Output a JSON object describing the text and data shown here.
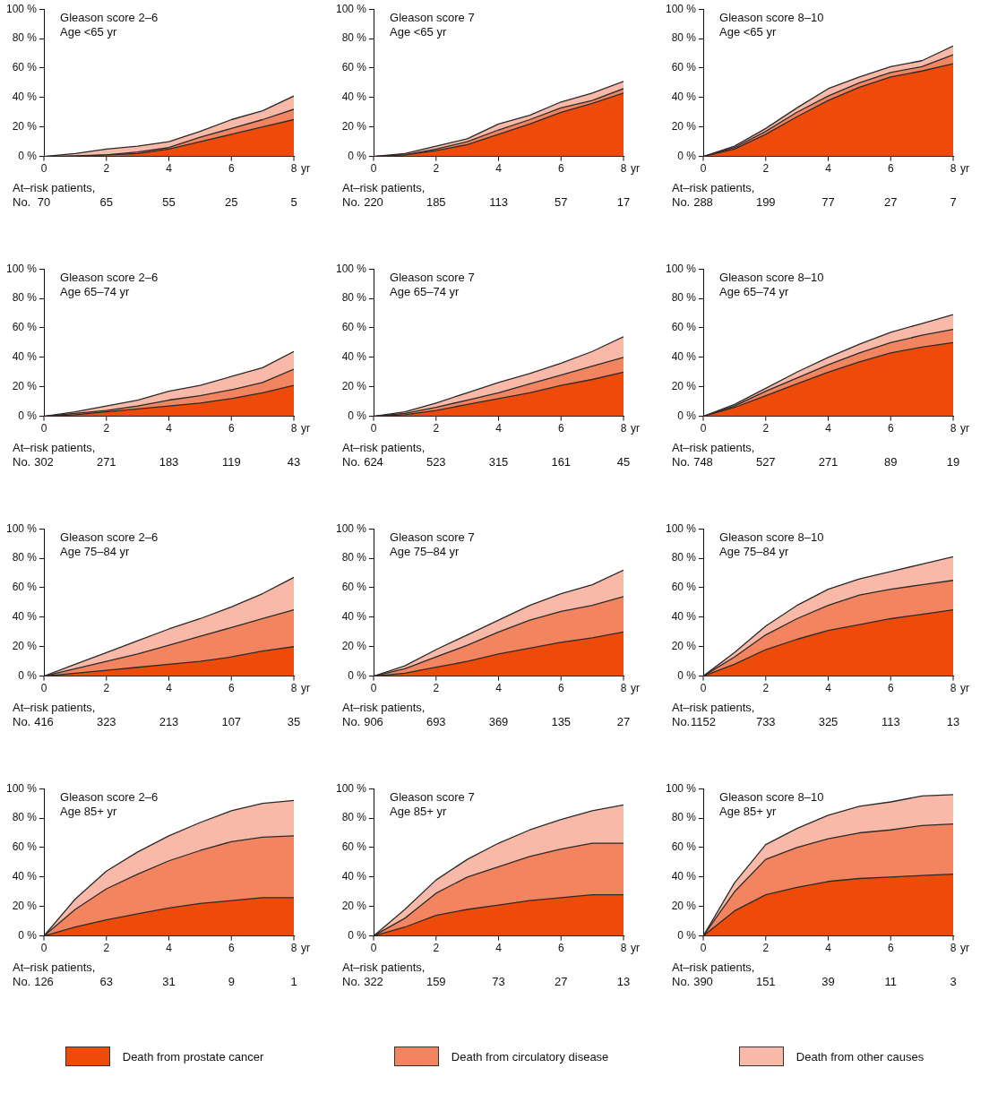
{
  "chart_data": [
    {
      "type": "area",
      "stacked": true,
      "title": "Gleason score 2–6",
      "subtitle": "Age <65 yr",
      "xlabel": "yr",
      "x": [
        0,
        1,
        2,
        3,
        4,
        5,
        6,
        7,
        8
      ],
      "xlim": [
        0,
        8
      ],
      "xticks": [
        0,
        2,
        4,
        6,
        8
      ],
      "ylim": [
        0,
        100
      ],
      "yticks": [
        {
          "value": 0,
          "label": "0 %"
        },
        {
          "value": 20,
          "label": "20 %"
        },
        {
          "value": 40,
          "label": "40 %"
        },
        {
          "value": 60,
          "label": "60 %"
        },
        {
          "value": 80,
          "label": "80 %"
        },
        {
          "value": 100,
          "label": "100 %"
        }
      ],
      "series": [
        {
          "color": "#ee4b0b",
          "values": [
            0,
            0,
            1,
            2,
            5,
            10,
            15,
            20,
            25
          ]
        },
        {
          "color": "#f2855f",
          "values": [
            0,
            0.5,
            0,
            1,
            1,
            3,
            4,
            5,
            7
          ]
        },
        {
          "color": "#f8b9a8",
          "values": [
            0,
            1.5,
            4,
            4,
            4,
            4,
            6,
            6,
            9
          ]
        }
      ],
      "annotations": [
        "At–risk patients,",
        "No.",
        "70",
        "65",
        "55",
        "25",
        "5"
      ]
    },
    {
      "type": "area",
      "stacked": true,
      "title": "Gleason score 7",
      "subtitle": "Age <65 yr",
      "xlabel": "yr",
      "x": [
        0,
        1,
        2,
        3,
        4,
        5,
        6,
        7,
        8
      ],
      "xlim": [
        0,
        8
      ],
      "xticks": [
        0,
        2,
        4,
        6,
        8
      ],
      "ylim": [
        0,
        100
      ],
      "yticks": [
        {
          "value": 0,
          "label": "0 %"
        },
        {
          "value": 20,
          "label": "20 %"
        },
        {
          "value": 40,
          "label": "40 %"
        },
        {
          "value": 60,
          "label": "60 %"
        },
        {
          "value": 80,
          "label": "80 %"
        },
        {
          "value": 100,
          "label": "100 %"
        }
      ],
      "series": [
        {
          "color": "#ee4b0b",
          "values": [
            0,
            1,
            4,
            8,
            15,
            22,
            30,
            36,
            43
          ]
        },
        {
          "color": "#f2855f",
          "values": [
            0,
            0,
            1,
            2,
            3,
            3,
            3,
            2,
            3
          ]
        },
        {
          "color": "#f8b9a8",
          "values": [
            0,
            1,
            2,
            2,
            4,
            3,
            4,
            5,
            5
          ]
        }
      ],
      "annotations": [
        "At–risk patients,",
        "No.",
        "220",
        "185",
        "113",
        "57",
        "17"
      ]
    },
    {
      "type": "area",
      "stacked": true,
      "title": "Gleason score 8–10",
      "subtitle": "Age <65 yr",
      "xlabel": "yr",
      "x": [
        0,
        1,
        2,
        3,
        4,
        5,
        6,
        7,
        8
      ],
      "xlim": [
        0,
        8
      ],
      "xticks": [
        0,
        2,
        4,
        6,
        8
      ],
      "ylim": [
        0,
        100
      ],
      "yticks": [
        {
          "value": 0,
          "label": "0 %"
        },
        {
          "value": 20,
          "label": "20 %"
        },
        {
          "value": 40,
          "label": "40 %"
        },
        {
          "value": 60,
          "label": "60 %"
        },
        {
          "value": 80,
          "label": "80 %"
        },
        {
          "value": 100,
          "label": "100 %"
        }
      ],
      "series": [
        {
          "color": "#ee4b0b",
          "values": [
            0,
            5,
            15,
            27,
            38,
            47,
            54,
            58,
            63
          ]
        },
        {
          "color": "#f2855f",
          "values": [
            0,
            1,
            2,
            3,
            3,
            3,
            3,
            3,
            6
          ]
        },
        {
          "color": "#f8b9a8",
          "values": [
            0,
            1,
            2,
            3,
            5,
            4,
            4,
            4,
            6
          ]
        }
      ],
      "annotations": [
        "At–risk patients,",
        "No.",
        "288",
        "199",
        "77",
        "27",
        "7"
      ]
    },
    {
      "type": "area",
      "stacked": true,
      "title": "Gleason score 2–6",
      "subtitle": "Age 65–74 yr",
      "xlabel": "yr",
      "x": [
        0,
        1,
        2,
        3,
        4,
        5,
        6,
        7,
        8
      ],
      "xlim": [
        0,
        8
      ],
      "xticks": [
        0,
        2,
        4,
        6,
        8
      ],
      "ylim": [
        0,
        100
      ],
      "yticks": [
        {
          "value": 0,
          "label": "0 %"
        },
        {
          "value": 20,
          "label": "20 %"
        },
        {
          "value": 40,
          "label": "40 %"
        },
        {
          "value": 60,
          "label": "60 %"
        },
        {
          "value": 80,
          "label": "80 %"
        },
        {
          "value": 100,
          "label": "100 %"
        }
      ],
      "series": [
        {
          "color": "#ee4b0b",
          "values": [
            0,
            1,
            3,
            5,
            7,
            9,
            12,
            16,
            21
          ]
        },
        {
          "color": "#f2855f",
          "values": [
            0,
            1,
            1,
            2,
            4,
            5,
            6,
            7,
            11
          ]
        },
        {
          "color": "#f8b9a8",
          "values": [
            0,
            1,
            3,
            4,
            6,
            7,
            9,
            10,
            12
          ]
        }
      ],
      "annotations": [
        "At–risk patients,",
        "No.",
        "302",
        "271",
        "183",
        "119",
        "43"
      ]
    },
    {
      "type": "area",
      "stacked": true,
      "title": "Gleason score 7",
      "subtitle": "Age 65–74 yr",
      "xlabel": "yr",
      "x": [
        0,
        1,
        2,
        3,
        4,
        5,
        6,
        7,
        8
      ],
      "xlim": [
        0,
        8
      ],
      "xticks": [
        0,
        2,
        4,
        6,
        8
      ],
      "ylim": [
        0,
        100
      ],
      "yticks": [
        {
          "value": 0,
          "label": "0 %"
        },
        {
          "value": 20,
          "label": "20 %"
        },
        {
          "value": 40,
          "label": "40 %"
        },
        {
          "value": 60,
          "label": "60 %"
        },
        {
          "value": 80,
          "label": "80 %"
        },
        {
          "value": 100,
          "label": "100 %"
        }
      ],
      "series": [
        {
          "color": "#ee4b0b",
          "values": [
            0,
            1,
            4,
            8,
            12,
            16,
            21,
            25,
            30
          ]
        },
        {
          "color": "#f2855f",
          "values": [
            0,
            1,
            2,
            3,
            4,
            6,
            7,
            9,
            10
          ]
        },
        {
          "color": "#f8b9a8",
          "values": [
            0,
            1,
            3,
            5,
            7,
            7,
            8,
            10,
            14
          ]
        }
      ],
      "annotations": [
        "At–risk patients,",
        "No.",
        "624",
        "523",
        "315",
        "161",
        "45"
      ]
    },
    {
      "type": "area",
      "stacked": true,
      "title": "Gleason score 8–10",
      "subtitle": "Age 65–74 yr",
      "xlabel": "yr",
      "x": [
        0,
        1,
        2,
        3,
        4,
        5,
        6,
        7,
        8
      ],
      "xlim": [
        0,
        8
      ],
      "xticks": [
        0,
        2,
        4,
        6,
        8
      ],
      "ylim": [
        0,
        100
      ],
      "yticks": [
        {
          "value": 0,
          "label": "0 %"
        },
        {
          "value": 20,
          "label": "20 %"
        },
        {
          "value": 40,
          "label": "40 %"
        },
        {
          "value": 60,
          "label": "60 %"
        },
        {
          "value": 80,
          "label": "80 %"
        },
        {
          "value": 100,
          "label": "100 %"
        }
      ],
      "series": [
        {
          "color": "#ee4b0b",
          "values": [
            0,
            6,
            14,
            22,
            30,
            37,
            43,
            47,
            50
          ]
        },
        {
          "color": "#f2855f",
          "values": [
            0,
            1,
            3,
            4,
            5,
            6,
            7,
            8,
            9
          ]
        },
        {
          "color": "#f8b9a8",
          "values": [
            0,
            1,
            2,
            4,
            5,
            6,
            7,
            8,
            10
          ]
        }
      ],
      "annotations": [
        "At–risk patients,",
        "No.",
        "748",
        "527",
        "271",
        "89",
        "19"
      ]
    },
    {
      "type": "area",
      "stacked": true,
      "title": "Gleason score 2–6",
      "subtitle": "Age 75–84 yr",
      "xlabel": "yr",
      "x": [
        0,
        1,
        2,
        3,
        4,
        5,
        6,
        7,
        8
      ],
      "xlim": [
        0,
        8
      ],
      "xticks": [
        0,
        2,
        4,
        6,
        8
      ],
      "ylim": [
        0,
        100
      ],
      "yticks": [
        {
          "value": 0,
          "label": "0 %"
        },
        {
          "value": 20,
          "label": "20 %"
        },
        {
          "value": 40,
          "label": "40 %"
        },
        {
          "value": 60,
          "label": "60 %"
        },
        {
          "value": 80,
          "label": "80 %"
        },
        {
          "value": 100,
          "label": "100 %"
        }
      ],
      "series": [
        {
          "color": "#ee4b0b",
          "values": [
            0,
            2,
            4,
            6,
            8,
            10,
            13,
            17,
            20
          ]
        },
        {
          "color": "#f2855f",
          "values": [
            0,
            3,
            6,
            9,
            13,
            17,
            20,
            22,
            25
          ]
        },
        {
          "color": "#f8b9a8",
          "values": [
            0,
            3,
            6,
            9,
            11,
            12,
            14,
            17,
            22
          ]
        }
      ],
      "annotations": [
        "At–risk patients,",
        "No.",
        "416",
        "323",
        "213",
        "107",
        "35"
      ]
    },
    {
      "type": "area",
      "stacked": true,
      "title": "Gleason score 7",
      "subtitle": "Age 75–84 yr",
      "xlabel": "yr",
      "x": [
        0,
        1,
        2,
        3,
        4,
        5,
        6,
        7,
        8
      ],
      "xlim": [
        0,
        8
      ],
      "xticks": [
        0,
        2,
        4,
        6,
        8
      ],
      "ylim": [
        0,
        100
      ],
      "yticks": [
        {
          "value": 0,
          "label": "0 %"
        },
        {
          "value": 20,
          "label": "20 %"
        },
        {
          "value": 40,
          "label": "40 %"
        },
        {
          "value": 60,
          "label": "60 %"
        },
        {
          "value": 80,
          "label": "80 %"
        },
        {
          "value": 100,
          "label": "100 %"
        }
      ],
      "series": [
        {
          "color": "#ee4b0b",
          "values": [
            0,
            2,
            6,
            10,
            15,
            19,
            23,
            26,
            30
          ]
        },
        {
          "color": "#f2855f",
          "values": [
            0,
            3,
            7,
            11,
            15,
            19,
            21,
            22,
            24
          ]
        },
        {
          "color": "#f8b9a8",
          "values": [
            0,
            2,
            5,
            7,
            8,
            10,
            12,
            14,
            18
          ]
        }
      ],
      "annotations": [
        "At–risk patients,",
        "No.",
        "906",
        "693",
        "369",
        "135",
        "27"
      ]
    },
    {
      "type": "area",
      "stacked": true,
      "title": "Gleason score 8–10",
      "subtitle": "Age 75–84 yr",
      "xlabel": "yr",
      "x": [
        0,
        1,
        2,
        3,
        4,
        5,
        6,
        7,
        8
      ],
      "xlim": [
        0,
        8
      ],
      "xticks": [
        0,
        2,
        4,
        6,
        8
      ],
      "ylim": [
        0,
        100
      ],
      "yticks": [
        {
          "value": 0,
          "label": "0 %"
        },
        {
          "value": 20,
          "label": "20 %"
        },
        {
          "value": 40,
          "label": "40 %"
        },
        {
          "value": 60,
          "label": "60 %"
        },
        {
          "value": 80,
          "label": "80 %"
        },
        {
          "value": 100,
          "label": "100 %"
        }
      ],
      "series": [
        {
          "color": "#ee4b0b",
          "values": [
            0,
            8,
            18,
            25,
            31,
            35,
            39,
            42,
            45
          ]
        },
        {
          "color": "#f2855f",
          "values": [
            0,
            5,
            10,
            14,
            17,
            20,
            20,
            20,
            20
          ]
        },
        {
          "color": "#f8b9a8",
          "values": [
            0,
            3,
            6,
            9,
            11,
            11,
            12,
            14,
            16
          ]
        }
      ],
      "annotations": [
        "At–risk patients,",
        "No.",
        "1152",
        "733",
        "325",
        "113",
        "13"
      ]
    },
    {
      "type": "area",
      "stacked": true,
      "title": "Gleason score 2–6",
      "subtitle": "Age 85+ yr",
      "xlabel": "yr",
      "x": [
        0,
        1,
        2,
        3,
        4,
        5,
        6,
        7,
        8
      ],
      "xlim": [
        0,
        8
      ],
      "xticks": [
        0,
        2,
        4,
        6,
        8
      ],
      "ylim": [
        0,
        100
      ],
      "yticks": [
        {
          "value": 0,
          "label": "0 %"
        },
        {
          "value": 20,
          "label": "20 %"
        },
        {
          "value": 40,
          "label": "40 %"
        },
        {
          "value": 60,
          "label": "60 %"
        },
        {
          "value": 80,
          "label": "80 %"
        },
        {
          "value": 100,
          "label": "100 %"
        }
      ],
      "series": [
        {
          "color": "#ee4b0b",
          "values": [
            0,
            6,
            11,
            15,
            19,
            22,
            24,
            26,
            26
          ]
        },
        {
          "color": "#f2855f",
          "values": [
            0,
            12,
            21,
            27,
            32,
            36,
            40,
            41,
            42
          ]
        },
        {
          "color": "#f8b9a8",
          "values": [
            0,
            7,
            12,
            15,
            17,
            19,
            21,
            23,
            24
          ]
        }
      ],
      "annotations": [
        "At–risk patients,",
        "No.",
        "126",
        "63",
        "31",
        "9",
        "1"
      ]
    },
    {
      "type": "area",
      "stacked": true,
      "title": "Gleason score 7",
      "subtitle": "Age 85+ yr",
      "xlabel": "yr",
      "x": [
        0,
        1,
        2,
        3,
        4,
        5,
        6,
        7,
        8
      ],
      "xlim": [
        0,
        8
      ],
      "xticks": [
        0,
        2,
        4,
        6,
        8
      ],
      "ylim": [
        0,
        100
      ],
      "yticks": [
        {
          "value": 0,
          "label": "0 %"
        },
        {
          "value": 20,
          "label": "20 %"
        },
        {
          "value": 40,
          "label": "40 %"
        },
        {
          "value": 60,
          "label": "60 %"
        },
        {
          "value": 80,
          "label": "80 %"
        },
        {
          "value": 100,
          "label": "100 %"
        }
      ],
      "series": [
        {
          "color": "#ee4b0b",
          "values": [
            0,
            6,
            14,
            18,
            21,
            24,
            26,
            28,
            28
          ]
        },
        {
          "color": "#f2855f",
          "values": [
            0,
            6,
            15,
            22,
            26,
            30,
            33,
            35,
            35
          ]
        },
        {
          "color": "#f8b9a8",
          "values": [
            0,
            6,
            9,
            12,
            16,
            18,
            20,
            22,
            26
          ]
        }
      ],
      "annotations": [
        "At–risk patients,",
        "No.",
        "322",
        "159",
        "73",
        "27",
        "13"
      ]
    },
    {
      "type": "area",
      "stacked": true,
      "title": "Gleason score 8–10",
      "subtitle": "Age 85+ yr",
      "xlabel": "yr",
      "x": [
        0,
        1,
        2,
        3,
        4,
        5,
        6,
        7,
        8
      ],
      "xlim": [
        0,
        8
      ],
      "xticks": [
        0,
        2,
        4,
        6,
        8
      ],
      "ylim": [
        0,
        100
      ],
      "yticks": [
        {
          "value": 0,
          "label": "0 %"
        },
        {
          "value": 20,
          "label": "20 %"
        },
        {
          "value": 40,
          "label": "40 %"
        },
        {
          "value": 60,
          "label": "60 %"
        },
        {
          "value": 80,
          "label": "80 %"
        },
        {
          "value": 100,
          "label": "100 %"
        }
      ],
      "legend": "bottom",
      "series": [
        {
          "name": "Death from prostate cancer",
          "color": "#ee4b0b",
          "values": [
            0,
            17,
            28,
            33,
            37,
            39,
            40,
            41,
            42
          ]
        },
        {
          "name": "Death from circulatory disease",
          "color": "#f2855f",
          "values": [
            0,
            13,
            24,
            27,
            29,
            31,
            32,
            34,
            34
          ]
        },
        {
          "name": "Death from other causes",
          "color": "#f8b9a8",
          "values": [
            0,
            6,
            10,
            13,
            16,
            18,
            19,
            20,
            20
          ]
        }
      ],
      "annotations": [
        "At–risk patients,",
        "No.",
        "390",
        "151",
        "39",
        "11",
        "3"
      ]
    }
  ]
}
